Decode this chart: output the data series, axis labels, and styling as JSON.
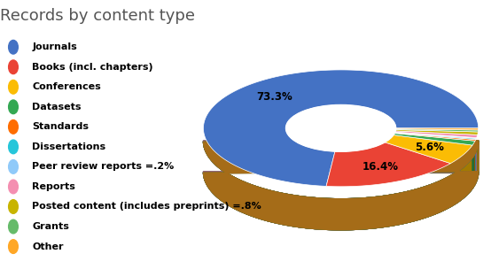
{
  "title": "Records by content type",
  "labels": [
    "Journals",
    "Books (incl. chapters)",
    "Conferences",
    "Datasets",
    "Standards",
    "Dissertations",
    "Peer review reports =.2%",
    "Reports",
    "Posted content (includes preprints) =.8%",
    "Grants",
    "Other"
  ],
  "values": [
    73.3,
    16.4,
    5.6,
    1.2,
    0.4,
    0.3,
    0.2,
    0.8,
    0.8,
    0.5,
    0.5
  ],
  "colors": [
    "#4472C4",
    "#EA4335",
    "#FBBC04",
    "#34A853",
    "#FF6D00",
    "#26C6DA",
    "#90CAF9",
    "#F48FB1",
    "#C8B400",
    "#66BB6A",
    "#FFA726"
  ],
  "title_fontsize": 13,
  "background_color": "#ffffff",
  "legend_fontsize": 8,
  "depth_color_journals": "#2A52A4",
  "depth_color_books": "#C42315",
  "depth_color_conferences": "#D89B00",
  "depth": 0.09
}
